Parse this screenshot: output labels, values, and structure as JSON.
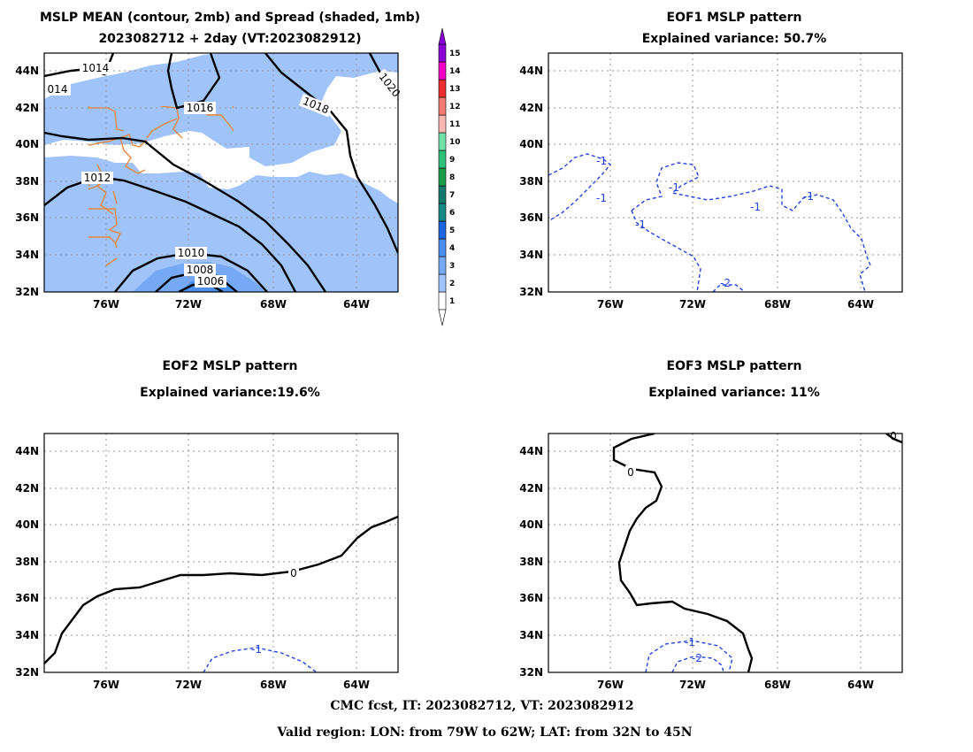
{
  "panels": {
    "mean": {
      "title_line1": "MSLP MEAN (contour, 2mb) and Spread (shaded, 1mb)",
      "title_line2": "2023082712 + 2day (VT:2023082912)",
      "contour_labels": [
        "1014",
        "014",
        "1016",
        "1018",
        "1020",
        "1012",
        "1010",
        "1008",
        "1006"
      ]
    },
    "eof1": {
      "title_line1": "EOF1 MSLP pattern",
      "title_line2": "Explained variance: 50.7%",
      "contour_labels": [
        "-1",
        "-1",
        "-1",
        "-1",
        "-1",
        "-1",
        "-2"
      ]
    },
    "eof2": {
      "title_line1": "EOF2 MSLP pattern",
      "title_line2": "Explained variance:19.6%",
      "contour_labels": [
        "0",
        "-1"
      ]
    },
    "eof3": {
      "title_line1": "EOF3 MSLP pattern",
      "title_line2": "Explained variance: 11%",
      "contour_labels": [
        "0",
        "0",
        "-1",
        "-2"
      ]
    }
  },
  "axes": {
    "lat_labels": [
      "44N",
      "42N",
      "40N",
      "38N",
      "36N",
      "34N",
      "32N"
    ],
    "lon_labels": [
      "76W",
      "72W",
      "68W",
      "64W"
    ]
  },
  "colorbar": {
    "labels": [
      "1",
      "2",
      "3",
      "4",
      "5",
      "6",
      "7",
      "8",
      "9",
      "10",
      "11",
      "12",
      "13",
      "14",
      "15"
    ],
    "colors": [
      "#ffffff",
      "#a0c4fa",
      "#76a9f5",
      "#4d8ff0",
      "#1e63e0",
      "#1a8a86",
      "#157a6e",
      "#1a9e4a",
      "#2fc07a",
      "#6fe0a6",
      "#f8b6b0",
      "#f47a72",
      "#ec2e2e",
      "#f400c6",
      "#8a00d6"
    ]
  },
  "footer": {
    "line1": "CMC fcst, IT: 2023082712, VT: 2023082912",
    "line2": "Valid region: LON: from 79W to 62W; LAT: from 32N to 45N"
  },
  "colors": {
    "coastline": "#e8883a",
    "spread_light": "#a0c4fa",
    "spread_mid": "#76a9f5",
    "eof_negative": "#2244dd"
  },
  "chart_data": [
    {
      "type": "heatmap",
      "title": "MSLP MEAN (contour, 2mb) and Spread (shaded, 1mb)",
      "subtitle": "2023082712 + 2day (VT:2023082912)",
      "xlim": [
        -79,
        -62
      ],
      "ylim": [
        32,
        45
      ],
      "contour_levels": [
        1006,
        1008,
        1010,
        1012,
        1014,
        1016,
        1018,
        1020
      ],
      "shading_levels": [
        1,
        2,
        3,
        4,
        5,
        6,
        7,
        8,
        9,
        10,
        11,
        12,
        13,
        14,
        15
      ],
      "grid": true
    },
    {
      "type": "line",
      "title": "EOF1 MSLP pattern",
      "subtitle": "Explained variance: 50.7%",
      "explained_variance_pct": 50.7,
      "xlim": [
        -79,
        -62
      ],
      "ylim": [
        32,
        45
      ],
      "contour_levels": [
        -2,
        -1
      ],
      "grid": true
    },
    {
      "type": "line",
      "title": "EOF2 MSLP pattern",
      "subtitle": "Explained variance:19.6%",
      "explained_variance_pct": 19.6,
      "xlim": [
        -79,
        -62
      ],
      "ylim": [
        32,
        45
      ],
      "contour_levels": [
        -1,
        0
      ],
      "grid": true
    },
    {
      "type": "line",
      "title": "EOF3 MSLP pattern",
      "subtitle": "Explained variance: 11%",
      "explained_variance_pct": 11,
      "xlim": [
        -79,
        -62
      ],
      "ylim": [
        32,
        45
      ],
      "contour_levels": [
        -2,
        -1,
        0
      ],
      "grid": true
    }
  ]
}
